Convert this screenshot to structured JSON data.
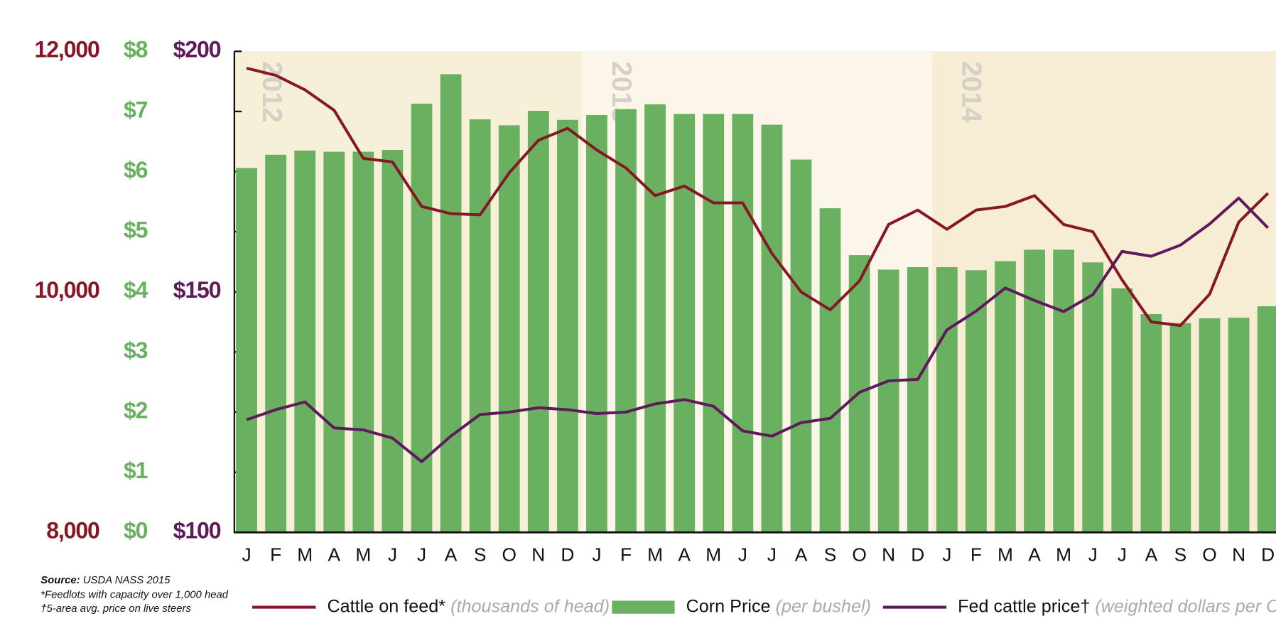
{
  "chart_data": {
    "type": "bar-line",
    "categories": [
      "J",
      "F",
      "M",
      "A",
      "M",
      "J",
      "J",
      "A",
      "S",
      "O",
      "N",
      "D",
      "J",
      "F",
      "M",
      "A",
      "M",
      "J",
      "J",
      "A",
      "S",
      "O",
      "N",
      "D",
      "J",
      "F",
      "M",
      "A",
      "M",
      "J",
      "J",
      "A",
      "S",
      "O",
      "N",
      "D"
    ],
    "year_labels": [
      "2012",
      "2013",
      "2014"
    ],
    "ylim": [
      8000,
      12000
    ],
    "yticks": [
      {
        "value": 8000,
        "label": "8,000"
      },
      {
        "value": 10000,
        "label": "10,000"
      },
      {
        "value": 12000,
        "label": "12,000"
      }
    ],
    "y2lim": [
      0,
      8
    ],
    "y2ticks": [
      {
        "value": 0,
        "label": "$0"
      },
      {
        "value": 1,
        "label": "$1"
      },
      {
        "value": 2,
        "label": "$2"
      },
      {
        "value": 3,
        "label": "$3"
      },
      {
        "value": 4,
        "label": "$4"
      },
      {
        "value": 5,
        "label": "$5"
      },
      {
        "value": 6,
        "label": "$6"
      },
      {
        "value": 7,
        "label": "$7"
      },
      {
        "value": 8,
        "label": "$8"
      }
    ],
    "y3lim": [
      100,
      200
    ],
    "y3ticks": [
      {
        "value": 100,
        "label": "$100"
      },
      {
        "value": 150,
        "label": "$150"
      },
      {
        "value": 200,
        "label": "$200"
      }
    ],
    "series": [
      {
        "name": "Cattle on feed*",
        "unit": "(thousands of head)",
        "type": "line",
        "axis": "y",
        "color": "#861825",
        "values": [
          11860,
          11800,
          11680,
          11510,
          11110,
          11080,
          10710,
          10650,
          10640,
          10990,
          11260,
          11360,
          11180,
          11030,
          10800,
          10880,
          10740,
          10740,
          10320,
          10000,
          9850,
          10090,
          10560,
          10680,
          10520,
          10680,
          10710,
          10800,
          10560,
          10500,
          10100,
          9750,
          9720,
          9980,
          10580,
          10820
        ]
      },
      {
        "name": "Corn Price",
        "unit": "(per bushel)",
        "type": "bar",
        "axis": "y2",
        "color": "#69b160",
        "values": [
          6.06,
          6.28,
          6.35,
          6.33,
          6.33,
          6.36,
          7.13,
          7.62,
          6.87,
          6.77,
          7.01,
          6.86,
          6.94,
          7.04,
          7.12,
          6.96,
          6.96,
          6.96,
          6.78,
          6.2,
          5.39,
          4.61,
          4.37,
          4.41,
          4.41,
          4.36,
          4.51,
          4.7,
          4.7,
          4.49,
          4.06,
          3.63,
          3.48,
          3.56,
          3.57,
          3.76
        ]
      },
      {
        "name": "Fed cattle price†",
        "unit": "(weighted dollars per CWT)",
        "type": "line",
        "axis": "y3",
        "color": "#5e1a5a",
        "values": [
          123.4,
          125.5,
          127.1,
          121.7,
          121.3,
          119.6,
          114.7,
          120.0,
          124.5,
          125.0,
          125.9,
          125.5,
          124.7,
          125.0,
          126.7,
          127.6,
          126.2,
          121.1,
          120.0,
          122.8,
          123.7,
          129.1,
          131.5,
          131.8,
          142.1,
          146.0,
          150.8,
          148.2,
          145.9,
          149.4,
          158.4,
          157.4,
          159.7,
          164.1,
          169.5,
          163.3
        ]
      }
    ],
    "axis_colors": {
      "y": "#861825",
      "y2": "#69b160",
      "y3": "#5e1a5a"
    },
    "band_colors": [
      "#f7f0d8",
      "#fbf6e9",
      "#f7edd4"
    ],
    "notes": {
      "source_label": "Source:",
      "source": "USDA NASS 2015",
      "footnotes": [
        "*Feedlots with capacity over 1,000 head",
        "†5-area avg. price on live steers"
      ]
    }
  }
}
